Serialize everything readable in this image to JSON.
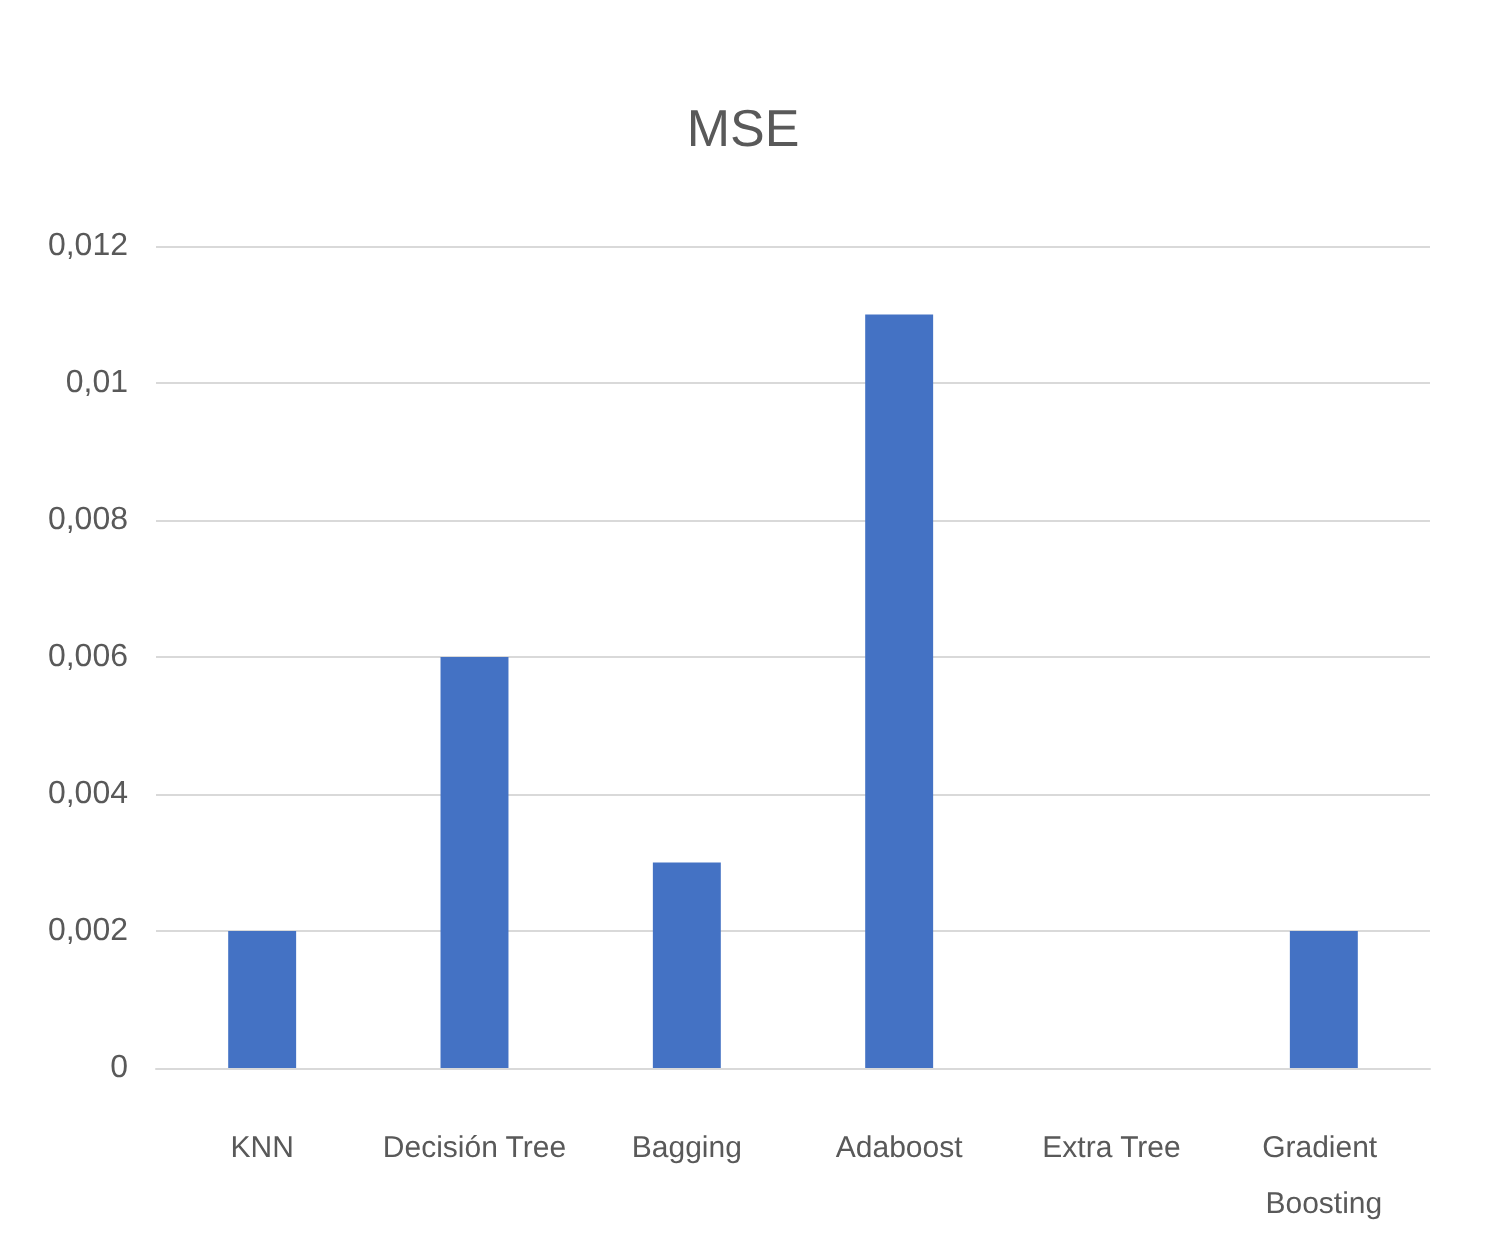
{
  "chart_data": {
    "type": "bar",
    "title": "MSE",
    "categories": [
      "KNN",
      "Decisión Tree",
      "Bagging",
      "Adaboost",
      "Extra Tree",
      "Gradient Boosting"
    ],
    "values": [
      0.002,
      0.006,
      0.003,
      0.011,
      0,
      0.002
    ],
    "color": "#4472c4",
    "ylim": [
      0,
      0.012
    ],
    "yticks": [
      0,
      {
        "value": 0.002,
        "label": "0,002"
      },
      {
        "value": 0.004,
        "label": "0,004"
      },
      {
        "value": 0.006,
        "label": "0,006"
      },
      {
        "value": 0.008,
        "label": "0,008"
      },
      {
        "value": 0.01,
        "label": "0,01"
      },
      {
        "value": 0.012,
        "label": "0,012"
      }
    ],
    "grid": "y"
  }
}
